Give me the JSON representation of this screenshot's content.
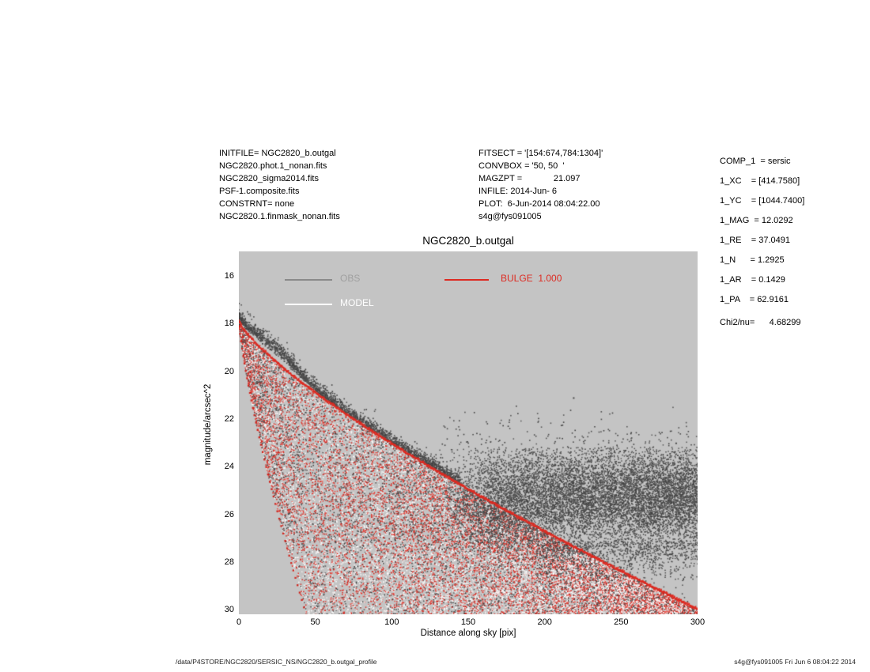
{
  "annotations": {
    "left_block": [
      "INITFILE= NGC2820_b.outgal",
      "NGC2820.phot.1_nonan.fits",
      "NGC2820_sigma2014.fits",
      "PSF-1.composite.fits",
      "CONSTRNT= none",
      "NGC2820.1.finmask_nonan.fits"
    ],
    "mid_block": [
      "FITSECT = '[154:674,784:1304]'",
      "CONVBOX = '50, 50  '",
      "MAGZPT =             21.097",
      "INFILE: 2014-Jun- 6",
      "PLOT:  6-Jun-2014 08:04:22.00",
      "s4g@fys091005"
    ],
    "right_block": [
      "COMP_1  = sersic",
      "1_XC    = [414.7580]",
      "1_YC    = [1044.7400]",
      "1_MAG  = 12.0292",
      "1_RE    = 37.0491",
      "1_N      = 1.2925",
      "1_AR    = 0.1429",
      "1_PA    = 62.9161"
    ],
    "chi2": "Chi2/nu=      4.68299"
  },
  "footer": {
    "left": "/data/P4STORE/NGC2820/SERSIC_NS/NGC2820_b.outgal_profile",
    "right": "s4g@fys091005  Fri Jun  6 08:04:22 2014"
  },
  "chart_data": {
    "type": "scatter",
    "title": "NGC2820_b.outgal",
    "xlabel": "Distance along sky [pix]",
    "ylabel": "magnitude/arcsec^2",
    "xlim": [
      0,
      300
    ],
    "ylim": [
      30.17,
      14.95
    ],
    "ylim_note": "magnitude axis inverted: 14.95 at top, 30.17 at bottom",
    "xticks": [
      0,
      50,
      100,
      150,
      200,
      250,
      300
    ],
    "yticks": [
      16,
      18,
      20,
      22,
      24,
      26,
      28,
      30
    ],
    "grid": false,
    "background": "#c4c4c4",
    "legend": {
      "position": "top-left-inside",
      "entries": [
        {
          "label": "OBS",
          "line_color": "#8a8a8a",
          "text_color": "#a0a0a0"
        },
        {
          "label": "MODEL",
          "line_color": "#ffffff",
          "text_color": "#ffffff"
        },
        {
          "label": "BULGE  1.000",
          "line_color": "#dd2b22",
          "text_color": "#dd2b22"
        }
      ]
    },
    "series": [
      {
        "name": "OBS",
        "color": "#4d4d4d",
        "description": "observed pixel surface brightness: ridge hugging model envelope for x<145 with bump near x=24, sky-noise band mag 23-28.5 for x>130"
      },
      {
        "name": "MODEL",
        "color": "#ffffff",
        "description": "model pixel values, white speckle inside bulge wedge"
      },
      {
        "name": "BULGE",
        "color": "#dd2b22",
        "profile": {
          "component": "sersic",
          "mu0": 17.85,
          "k_major": 0.1455,
          "k_minor": 0.657,
          "exponent": 0.775,
          "axis_ratio": 0.1429,
          "top_edge": "mu = 17.85 + 0.1455*x^0.775 (reaches ~29.95 at x=300)",
          "left_edge": "mu = 17.85 + 0.657*x^0.775 (reaches bottom at x~44)"
        }
      }
    ],
    "outliers": [
      [
        219,
        21.1
      ],
      [
        286,
        23.0
      ]
    ],
    "render": {
      "seed": 7,
      "n_wedge": 26000,
      "n_edge": 1400,
      "n_ridge": 2100,
      "n_cloud": 10500,
      "n_lowtail": 900,
      "n_sparse_high": 260,
      "ridge_xmax": 145,
      "ridge_bump_x": 24,
      "ridge_bump_sd": 13,
      "ridge_bump_amp": 0.6,
      "cloud_xmin": 128,
      "cloud_center": 25.25,
      "cloud_sd": 1.05,
      "red_palette": [
        "#dd2b22",
        "#d0241c",
        "#ea4a40"
      ],
      "white_palette": [
        "#ffffff",
        "#f6ecec"
      ],
      "dark_palette": [
        "#4c4c4c",
        "#575757",
        "#414141"
      ]
    }
  }
}
